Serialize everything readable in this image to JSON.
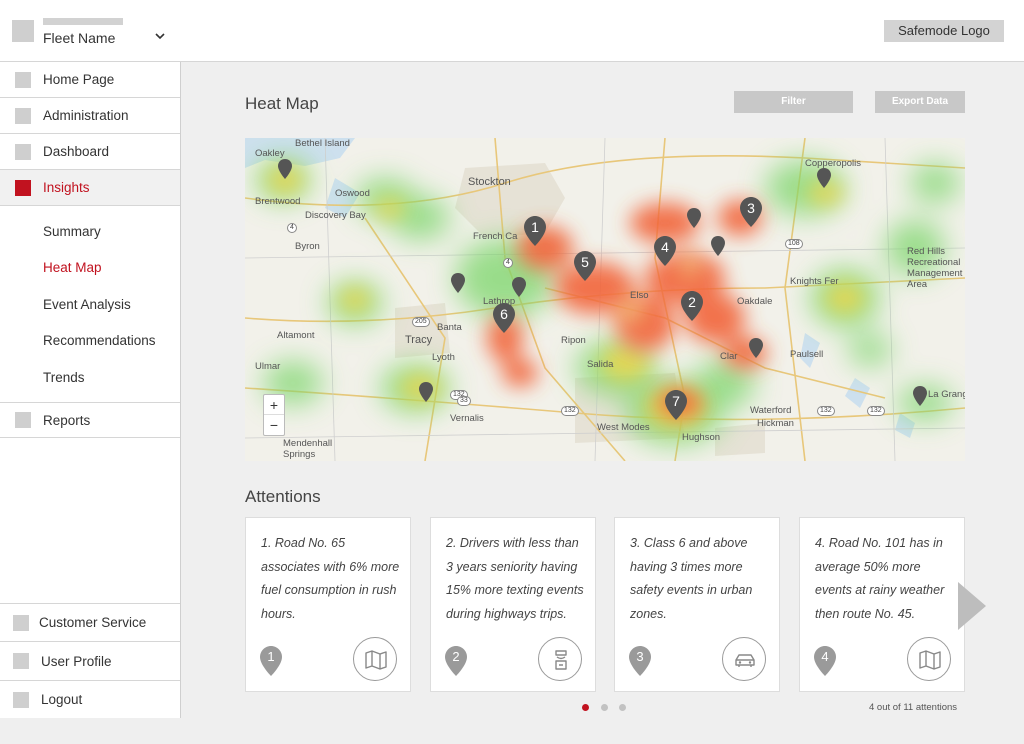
{
  "header": {
    "fleet_name": "Fleet Name",
    "chevron": "chevron-down-icon",
    "logo": "Safemode Logo"
  },
  "sidebar": {
    "items": [
      {
        "label": "Home Page",
        "icon": "square-icon"
      },
      {
        "label": "Administration",
        "icon": "square-icon"
      },
      {
        "label": "Dashboard",
        "icon": "square-icon"
      },
      {
        "label": "Insights",
        "icon": "square-icon",
        "active": true
      }
    ],
    "sub_items": [
      {
        "label": "Summary"
      },
      {
        "label": "Heat Map",
        "active": true
      },
      {
        "label": "Event Analysis"
      },
      {
        "label": "Recommendations"
      },
      {
        "label": "Trends"
      }
    ],
    "reports": {
      "label": "Reports"
    },
    "bottom_items": [
      {
        "label": "Customer Service"
      },
      {
        "label": "User Profile"
      },
      {
        "label": "Logout"
      }
    ]
  },
  "main": {
    "title": "Heat Map",
    "filter_label": "Filter",
    "export_label": "Export Data",
    "map": {
      "labels": [
        "Oakley",
        "Bethel Island",
        "Brentwood",
        "Oswood",
        "Discovery Bay",
        "Byron",
        "Stockton",
        "French Ca",
        "Lathrop",
        "Altamont",
        "Banta",
        "Tracy",
        "Lyoth",
        "Ulmar",
        "Vernalis",
        "Ripon",
        "Salida",
        "West Modes",
        "Mendenhall Springs",
        "Copperopolis",
        "Red Hills Recreational Management Area",
        "Knights Fer",
        "Oakdale",
        "Paulsell",
        "Waterford",
        "Hickman",
        "Hughson",
        "La Grange",
        "Elso",
        "Clar"
      ],
      "highways": [
        "205",
        "4",
        "4",
        "132",
        "33",
        "132",
        "132",
        "108",
        "132"
      ],
      "pins": [
        "1",
        "2",
        "3",
        "4",
        "5",
        "6",
        "7"
      ],
      "zoom_in": "+",
      "zoom_out": "−"
    },
    "attentions_title": "Attentions",
    "cards": [
      {
        "text": "1. Road No. 65 associates with 6% more fuel consumption in rush hours.",
        "number": "1",
        "icon": "map-icon"
      },
      {
        "text": "2. Drivers with less than 3 years seniority having 15% more texting events during highways trips.",
        "number": "2",
        "icon": "driver-icon"
      },
      {
        "text": "3. Class 6 and above having 3 times more safety events in urban zones.",
        "number": "3",
        "icon": "car-icon"
      },
      {
        "text": "4. Road No. 101 has in average 50% more events at rainy weather then route No. 45.",
        "number": "4",
        "icon": "map-icon"
      }
    ],
    "next_icon": "next-arrow-icon",
    "pager_text": "4 out of 11 attentions"
  },
  "colors": {
    "accent": "#c1121f",
    "pin": "#555555",
    "skeleton": "#cfcfcf"
  }
}
